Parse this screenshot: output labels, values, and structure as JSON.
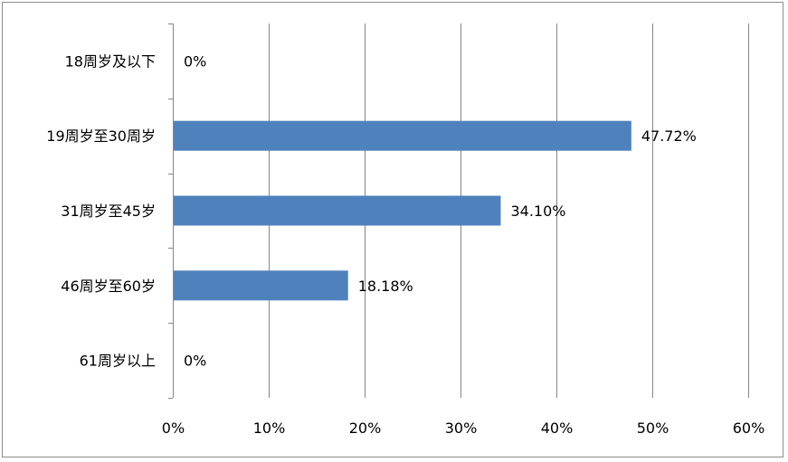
{
  "chart_data": {
    "type": "bar",
    "orientation": "horizontal",
    "categories": [
      "18周岁及以下",
      "19周岁至30周岁",
      "31周岁至45岁",
      "46周岁至60岁",
      "61周岁以上"
    ],
    "values": [
      0,
      47.72,
      34.1,
      18.18,
      0
    ],
    "data_labels": [
      "0%",
      "47.72%",
      "34.10%",
      "18.18%",
      "0%"
    ],
    "x_ticks": [
      "0%",
      "10%",
      "20%",
      "30%",
      "40%",
      "50%",
      "60%"
    ],
    "xlim": [
      0,
      60
    ],
    "grid": true,
    "legend": "none",
    "bar_color": "#4f81bd",
    "grid_color": "#868686",
    "title": "",
    "xlabel": "",
    "ylabel": ""
  }
}
